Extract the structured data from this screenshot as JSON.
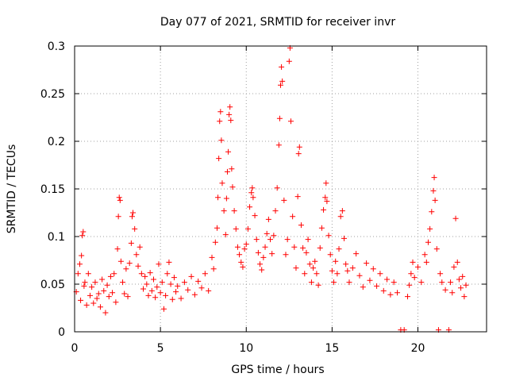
{
  "chart_data": {
    "type": "scatter",
    "title": "Day 077 of 2021, SRMTID for receiver invr",
    "xlabel": "GPS time / hours",
    "ylabel": "SRMTID / TECUs",
    "xlim": [
      0,
      24
    ],
    "ylim": [
      0,
      0.3
    ],
    "xticks": [
      0,
      5,
      10,
      15,
      20
    ],
    "xtick_labels": [
      "0",
      "5",
      "10",
      "15",
      "20"
    ],
    "yticks": [
      0,
      0.05,
      0.1,
      0.15,
      0.2,
      0.25,
      0.3
    ],
    "ytick_labels": [
      "0",
      "0.05",
      "0.1",
      "0.15",
      "0.2",
      "0.25",
      "0.3"
    ],
    "grid": true,
    "marker": "+",
    "color": "#ff0000",
    "series": [
      {
        "name": "SRMTID",
        "points": [
          [
            0.1,
            0.042
          ],
          [
            0.2,
            0.061
          ],
          [
            0.3,
            0.071
          ],
          [
            0.35,
            0.033
          ],
          [
            0.4,
            0.08
          ],
          [
            0.45,
            0.101
          ],
          [
            0.5,
            0.105
          ],
          [
            0.55,
            0.048
          ],
          [
            0.6,
            0.052
          ],
          [
            0.7,
            0.028
          ],
          [
            0.8,
            0.061
          ],
          [
            0.9,
            0.038
          ],
          [
            1.0,
            0.047
          ],
          [
            1.1,
            0.03
          ],
          [
            1.2,
            0.052
          ],
          [
            1.3,
            0.035
          ],
          [
            1.4,
            0.04
          ],
          [
            1.5,
            0.026
          ],
          [
            1.6,
            0.055
          ],
          [
            1.7,
            0.043
          ],
          [
            1.8,
            0.02
          ],
          [
            1.9,
            0.049
          ],
          [
            2.0,
            0.037
          ],
          [
            2.1,
            0.058
          ],
          [
            2.2,
            0.041
          ],
          [
            2.3,
            0.061
          ],
          [
            2.4,
            0.031
          ],
          [
            2.5,
            0.087
          ],
          [
            2.55,
            0.121
          ],
          [
            2.6,
            0.141
          ],
          [
            2.65,
            0.138
          ],
          [
            2.7,
            0.074
          ],
          [
            2.8,
            0.052
          ],
          [
            2.9,
            0.04
          ],
          [
            3.0,
            0.066
          ],
          [
            3.1,
            0.037
          ],
          [
            3.2,
            0.072
          ],
          [
            3.3,
            0.093
          ],
          [
            3.35,
            0.121
          ],
          [
            3.4,
            0.125
          ],
          [
            3.5,
            0.108
          ],
          [
            3.6,
            0.081
          ],
          [
            3.7,
            0.069
          ],
          [
            3.8,
            0.089
          ],
          [
            3.9,
            0.061
          ],
          [
            4.0,
            0.045
          ],
          [
            4.1,
            0.058
          ],
          [
            4.2,
            0.05
          ],
          [
            4.3,
            0.038
          ],
          [
            4.4,
            0.062
          ],
          [
            4.5,
            0.043
          ],
          [
            4.6,
            0.055
          ],
          [
            4.7,
            0.036
          ],
          [
            4.8,
            0.047
          ],
          [
            4.9,
            0.071
          ],
          [
            5.0,
            0.041
          ],
          [
            5.1,
            0.052
          ],
          [
            5.2,
            0.024
          ],
          [
            5.3,
            0.038
          ],
          [
            5.4,
            0.061
          ],
          [
            5.5,
            0.073
          ],
          [
            5.6,
            0.05
          ],
          [
            5.7,
            0.034
          ],
          [
            5.8,
            0.057
          ],
          [
            5.9,
            0.042
          ],
          [
            6.0,
            0.048
          ],
          [
            6.2,
            0.035
          ],
          [
            6.4,
            0.052
          ],
          [
            6.6,
            0.044
          ],
          [
            6.8,
            0.058
          ],
          [
            7.0,
            0.039
          ],
          [
            7.2,
            0.053
          ],
          [
            7.4,
            0.046
          ],
          [
            7.6,
            0.061
          ],
          [
            7.8,
            0.043
          ],
          [
            8.0,
            0.078
          ],
          [
            8.1,
            0.066
          ],
          [
            8.2,
            0.094
          ],
          [
            8.3,
            0.109
          ],
          [
            8.35,
            0.141
          ],
          [
            8.4,
            0.182
          ],
          [
            8.45,
            0.221
          ],
          [
            8.5,
            0.231
          ],
          [
            8.55,
            0.201
          ],
          [
            8.6,
            0.156
          ],
          [
            8.7,
            0.127
          ],
          [
            8.8,
            0.102
          ],
          [
            8.85,
            0.14
          ],
          [
            8.9,
            0.168
          ],
          [
            8.95,
            0.189
          ],
          [
            9.0,
            0.228
          ],
          [
            9.05,
            0.236
          ],
          [
            9.1,
            0.222
          ],
          [
            9.15,
            0.171
          ],
          [
            9.2,
            0.152
          ],
          [
            9.3,
            0.127
          ],
          [
            9.4,
            0.108
          ],
          [
            9.5,
            0.089
          ],
          [
            9.6,
            0.081
          ],
          [
            9.7,
            0.073
          ],
          [
            9.8,
            0.068
          ],
          [
            9.9,
            0.087
          ],
          [
            10.0,
            0.092
          ],
          [
            10.1,
            0.108
          ],
          [
            10.2,
            0.131
          ],
          [
            10.3,
            0.146
          ],
          [
            10.35,
            0.151
          ],
          [
            10.4,
            0.141
          ],
          [
            10.5,
            0.122
          ],
          [
            10.6,
            0.097
          ],
          [
            10.7,
            0.083
          ],
          [
            10.8,
            0.071
          ],
          [
            10.9,
            0.065
          ],
          [
            11.0,
            0.078
          ],
          [
            11.1,
            0.089
          ],
          [
            11.2,
            0.103
          ],
          [
            11.3,
            0.118
          ],
          [
            11.4,
            0.097
          ],
          [
            11.5,
            0.082
          ],
          [
            11.6,
            0.101
          ],
          [
            11.7,
            0.127
          ],
          [
            11.8,
            0.151
          ],
          [
            11.9,
            0.196
          ],
          [
            11.95,
            0.224
          ],
          [
            12.0,
            0.259
          ],
          [
            12.05,
            0.278
          ],
          [
            12.1,
            0.263
          ],
          [
            12.2,
            0.138
          ],
          [
            12.3,
            0.081
          ],
          [
            12.4,
            0.097
          ],
          [
            12.5,
            0.284
          ],
          [
            12.55,
            0.298
          ],
          [
            12.6,
            0.221
          ],
          [
            12.7,
            0.121
          ],
          [
            12.8,
            0.089
          ],
          [
            12.9,
            0.067
          ],
          [
            13.0,
            0.142
          ],
          [
            13.05,
            0.187
          ],
          [
            13.1,
            0.194
          ],
          [
            13.2,
            0.112
          ],
          [
            13.3,
            0.088
          ],
          [
            13.4,
            0.061
          ],
          [
            13.5,
            0.083
          ],
          [
            13.6,
            0.097
          ],
          [
            13.7,
            0.071
          ],
          [
            13.8,
            0.052
          ],
          [
            13.9,
            0.067
          ],
          [
            14.0,
            0.074
          ],
          [
            14.1,
            0.061
          ],
          [
            14.2,
            0.049
          ],
          [
            14.3,
            0.088
          ],
          [
            14.4,
            0.109
          ],
          [
            14.5,
            0.128
          ],
          [
            14.6,
            0.141
          ],
          [
            14.65,
            0.156
          ],
          [
            14.7,
            0.137
          ],
          [
            14.8,
            0.101
          ],
          [
            14.9,
            0.081
          ],
          [
            15.0,
            0.064
          ],
          [
            15.1,
            0.052
          ],
          [
            15.2,
            0.074
          ],
          [
            15.3,
            0.061
          ],
          [
            15.4,
            0.087
          ],
          [
            15.5,
            0.121
          ],
          [
            15.6,
            0.127
          ],
          [
            15.7,
            0.098
          ],
          [
            15.8,
            0.071
          ],
          [
            15.9,
            0.064
          ],
          [
            16.0,
            0.052
          ],
          [
            16.2,
            0.067
          ],
          [
            16.4,
            0.082
          ],
          [
            16.6,
            0.059
          ],
          [
            16.8,
            0.047
          ],
          [
            17.0,
            0.072
          ],
          [
            17.2,
            0.054
          ],
          [
            17.4,
            0.066
          ],
          [
            17.6,
            0.048
          ],
          [
            17.8,
            0.061
          ],
          [
            18.0,
            0.043
          ],
          [
            18.2,
            0.055
          ],
          [
            18.4,
            0.039
          ],
          [
            18.6,
            0.052
          ],
          [
            18.8,
            0.041
          ],
          [
            19.0,
            0.002
          ],
          [
            19.2,
            0.002
          ],
          [
            19.4,
            0.037
          ],
          [
            19.5,
            0.049
          ],
          [
            19.6,
            0.061
          ],
          [
            19.7,
            0.073
          ],
          [
            19.8,
            0.057
          ],
          [
            20.0,
            0.068
          ],
          [
            20.2,
            0.052
          ],
          [
            20.4,
            0.081
          ],
          [
            20.5,
            0.073
          ],
          [
            20.6,
            0.094
          ],
          [
            20.7,
            0.108
          ],
          [
            20.8,
            0.126
          ],
          [
            20.9,
            0.148
          ],
          [
            20.95,
            0.162
          ],
          [
            21.0,
            0.138
          ],
          [
            21.1,
            0.087
          ],
          [
            21.2,
            0.002
          ],
          [
            21.3,
            0.061
          ],
          [
            21.4,
            0.052
          ],
          [
            21.6,
            0.044
          ],
          [
            21.8,
            0.002
          ],
          [
            21.9,
            0.052
          ],
          [
            22.0,
            0.041
          ],
          [
            22.1,
            0.068
          ],
          [
            22.2,
            0.119
          ],
          [
            22.3,
            0.073
          ],
          [
            22.4,
            0.055
          ],
          [
            22.5,
            0.046
          ],
          [
            22.6,
            0.058
          ],
          [
            22.7,
            0.037
          ],
          [
            22.8,
            0.049
          ]
        ]
      }
    ]
  }
}
